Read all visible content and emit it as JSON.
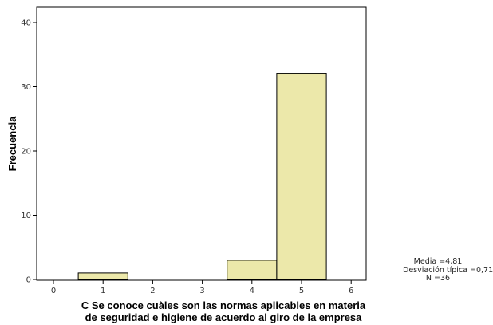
{
  "chart_data": {
    "type": "bar",
    "categories": [
      "1",
      "2",
      "3",
      "4",
      "5"
    ],
    "values": [
      1,
      0,
      0,
      3,
      32
    ],
    "x_ticks": [
      "0",
      "1",
      "2",
      "3",
      "4",
      "5",
      "6"
    ],
    "xlim": [
      0,
      6
    ],
    "y_ticks": [
      "0",
      "10",
      "20",
      "30",
      "40"
    ],
    "ylim": [
      0,
      42
    ],
    "xlabel_line1": "C Se conoce cuàles son las normas aplicables en materia",
    "xlabel_line2": "de seguridad e higiene de acuerdo al giro de la empresa",
    "ylabel": "Frecuencia",
    "bar_color": "#ece8aa",
    "grid": false,
    "stats": {
      "mean": "Media =4,81",
      "std": "Desviación típica =0,71",
      "n": "N =36"
    }
  }
}
